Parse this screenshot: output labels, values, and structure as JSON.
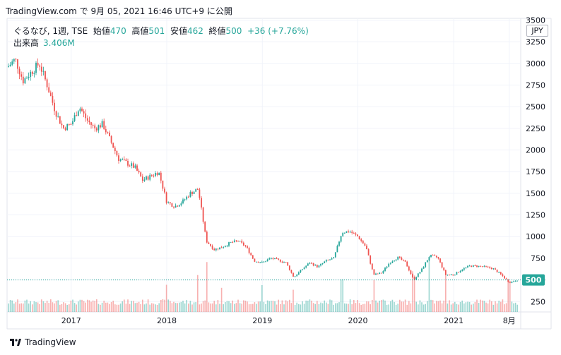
{
  "header": {
    "caption": "TradingView.com で 9月 05, 2021 16:46 UTC+9 に公開"
  },
  "legend": {
    "symbol": "ぐるなび, 1週, TSE",
    "open_label": "始値",
    "open": "470",
    "high_label": "高値",
    "high": "501",
    "low_label": "安値",
    "low": "462",
    "close_label": "終値",
    "close": "500",
    "change": "+36 (+7.76%)",
    "volume_label": "出来高",
    "volume": "3.406M"
  },
  "currency": "JPY",
  "footer": {
    "brand": "TradingView"
  },
  "colors": {
    "up": "#26a69a",
    "down": "#ef5350",
    "grid": "#f0f3fa",
    "text": "#131722"
  },
  "chart_data": {
    "type": "candlestick",
    "interval": "1 week",
    "y_ticks": [
      250,
      500,
      750,
      1000,
      1250,
      1500,
      1750,
      2000,
      2250,
      2500,
      2750,
      3000,
      3250,
      3500
    ],
    "ylim": [
      130,
      3520
    ],
    "x_labels": [
      {
        "label": "2017",
        "date": "2017-01"
      },
      {
        "label": "2018",
        "date": "2018-01"
      },
      {
        "label": "2019",
        "date": "2019-01"
      },
      {
        "label": "2020",
        "date": "2020-01"
      },
      {
        "label": "2021",
        "date": "2021-01"
      },
      {
        "label": "8月",
        "date": "2021-08"
      }
    ],
    "last_price": 500,
    "price_path": [
      [
        "2016-05",
        2950
      ],
      [
        "2016-06",
        3050
      ],
      [
        "2016-07",
        2800
      ],
      [
        "2016-08",
        2900
      ],
      [
        "2016-09",
        3000
      ],
      [
        "2016-10",
        2750
      ],
      [
        "2016-11",
        2450
      ],
      [
        "2016-12",
        2250
      ],
      [
        "2017-01",
        2300
      ],
      [
        "2017-02",
        2500
      ],
      [
        "2017-03",
        2350
      ],
      [
        "2017-04",
        2250
      ],
      [
        "2017-05",
        2300
      ],
      [
        "2017-06",
        2100
      ],
      [
        "2017-07",
        1900
      ],
      [
        "2017-08",
        1850
      ],
      [
        "2017-09",
        1800
      ],
      [
        "2017-10",
        1650
      ],
      [
        "2017-11",
        1700
      ],
      [
        "2017-12",
        1750
      ],
      [
        "2018-01",
        1400
      ],
      [
        "2018-02",
        1350
      ],
      [
        "2018-03",
        1400
      ],
      [
        "2018-04",
        1500
      ],
      [
        "2018-05",
        1550
      ],
      [
        "2018-06",
        950
      ],
      [
        "2018-07",
        850
      ],
      [
        "2018-08",
        880
      ],
      [
        "2018-09",
        930
      ],
      [
        "2018-10",
        950
      ],
      [
        "2018-11",
        880
      ],
      [
        "2018-12",
        720
      ],
      [
        "2019-01",
        700
      ],
      [
        "2019-02",
        750
      ],
      [
        "2019-03",
        730
      ],
      [
        "2019-04",
        700
      ],
      [
        "2019-05",
        530
      ],
      [
        "2019-06",
        620
      ],
      [
        "2019-07",
        700
      ],
      [
        "2019-08",
        650
      ],
      [
        "2019-09",
        720
      ],
      [
        "2019-10",
        750
      ],
      [
        "2019-11",
        1050
      ],
      [
        "2019-12",
        1060
      ],
      [
        "2020-01",
        1000
      ],
      [
        "2020-02",
        880
      ],
      [
        "2020-03",
        560
      ],
      [
        "2020-04",
        580
      ],
      [
        "2020-05",
        700
      ],
      [
        "2020-06",
        760
      ],
      [
        "2020-07",
        700
      ],
      [
        "2020-08",
        500
      ],
      [
        "2020-09",
        620
      ],
      [
        "2020-10",
        780
      ],
      [
        "2020-11",
        760
      ],
      [
        "2020-12",
        560
      ],
      [
        "2021-01",
        560
      ],
      [
        "2021-02",
        620
      ],
      [
        "2021-03",
        660
      ],
      [
        "2021-04",
        660
      ],
      [
        "2021-05",
        650
      ],
      [
        "2021-06",
        630
      ],
      [
        "2021-07",
        560
      ],
      [
        "2021-08",
        470
      ],
      [
        "2021-09",
        500
      ]
    ],
    "volume_spikes": [
      [
        "2018-01",
        0.35
      ],
      [
        "2018-05",
        0.45
      ],
      [
        "2018-06",
        0.7
      ],
      [
        "2018-08",
        0.3
      ],
      [
        "2019-01",
        0.3
      ],
      [
        "2019-05",
        0.25
      ],
      [
        "2019-11",
        0.4
      ],
      [
        "2020-03",
        0.35
      ],
      [
        "2020-08",
        0.5
      ],
      [
        "2020-10",
        0.75
      ],
      [
        "2020-12",
        0.45
      ],
      [
        "2021-08",
        0.35
      ]
    ]
  }
}
